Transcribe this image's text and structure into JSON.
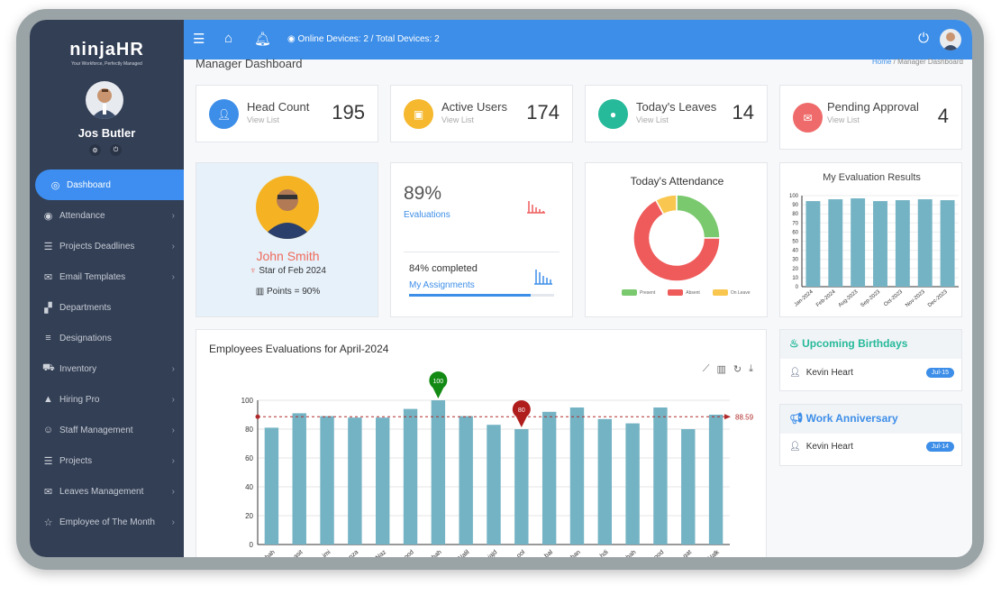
{
  "brand": {
    "logo": "ninjaHR",
    "tagline": "Your Workforce, Perfectly Managed"
  },
  "user": {
    "name": "Jos Butler"
  },
  "sidebar": {
    "items": [
      {
        "label": "Dashboard",
        "icon": "dashboard-icon"
      },
      {
        "label": "Attendance",
        "icon": "fingerprint-icon"
      },
      {
        "label": "Projects Deadlines",
        "icon": "tasks-icon"
      },
      {
        "label": "Email Templates",
        "icon": "envelope-icon"
      },
      {
        "label": "Departments",
        "icon": "sitemap-icon"
      },
      {
        "label": "Designations",
        "icon": "list-icon"
      },
      {
        "label": "Inventory",
        "icon": "cart-icon"
      },
      {
        "label": "Hiring Pro",
        "icon": "graduation-cap-icon"
      },
      {
        "label": "Staff Management",
        "icon": "staff-icon"
      },
      {
        "label": "Projects",
        "icon": "tasks-icon"
      },
      {
        "label": "Leaves Management",
        "icon": "envelope-open-icon"
      },
      {
        "label": "Employee of The Month",
        "icon": "star-icon"
      }
    ]
  },
  "topbar": {
    "online": "Online Devices: 2",
    "total": "/ Total Devices: 2"
  },
  "page": {
    "title": "Manager Dashboard",
    "bc_home": "Home",
    "bc_sep": "/",
    "bc_current": "Manager Dashboard"
  },
  "stats": [
    {
      "label": "Head Count",
      "sub": "View List",
      "value": "195",
      "color": "#3d8ee8"
    },
    {
      "label": "Active Users",
      "sub": "View List",
      "value": "174",
      "color": "#f5b82e"
    },
    {
      "label": "Today's Leaves",
      "sub": "View List",
      "value": "14",
      "color": "#26b99a"
    },
    {
      "label": "Pending  Approval",
      "sub": "View List",
      "value": "4",
      "color": "#ef6b6b"
    }
  ],
  "star": {
    "name": "John Smith",
    "title": "Star of Feb 2024",
    "points": "Points = 90%"
  },
  "evaluation": {
    "percent": "89%",
    "label": "Evaluations",
    "completed": "84% completed",
    "link": "My Assignments",
    "progress": 0.84
  },
  "attendance": {
    "title": "Today's Attendance",
    "legend": [
      "Present",
      "Absent",
      "On Leave"
    ]
  },
  "eval_results": {
    "title": "My Evaluation Results"
  },
  "main_chart": {
    "title": "Employees Evaluations for April-2024",
    "avg_label": "88.59",
    "max_label": "100",
    "min_label": "80"
  },
  "birthdays": {
    "title": "Upcoming Birthdays",
    "name": "Kevin Heart",
    "badge": "Jul-15"
  },
  "anniversary": {
    "title": "Work Anniversary",
    "name": "Kevin Heart",
    "badge": "Jul-14"
  },
  "chart_data": [
    {
      "type": "pie",
      "title": "Today's Attendance",
      "categories": [
        "Present",
        "Absent",
        "On Leave"
      ],
      "values": [
        25,
        67,
        8
      ],
      "colors": [
        "#7bc96f",
        "#ef5b5b",
        "#f9c74f"
      ]
    },
    {
      "type": "bar",
      "title": "My Evaluation Results",
      "categories": [
        "Jan-2024",
        "Feb-2024",
        "Aug-2023",
        "Sep-2023",
        "Oct-2023",
        "Nov-2023",
        "Dec-2023"
      ],
      "values": [
        94,
        96,
        97,
        94,
        95,
        96,
        95
      ],
      "ylim": [
        0,
        100
      ],
      "yticks": [
        0,
        10,
        20,
        30,
        40,
        50,
        60,
        70,
        80,
        90,
        100
      ]
    },
    {
      "type": "bar",
      "title": "Employees Evaluations for April-2024",
      "categories": [
        "hah",
        "asit",
        "imi",
        "onza",
        "Naz",
        "ood",
        "hah",
        "Nalil",
        "jajd",
        "ool",
        "bal",
        "han",
        "hdi",
        "hah",
        "ood",
        "gat",
        "Nalk"
      ],
      "values": [
        81,
        91,
        89,
        88,
        88,
        94,
        100,
        89,
        83,
        80,
        92,
        95,
        87,
        84,
        95,
        80,
        90
      ],
      "ylim": [
        0,
        100
      ],
      "yticks": [
        0,
        20,
        40,
        60,
        80,
        100
      ],
      "average": 88.59
    }
  ]
}
